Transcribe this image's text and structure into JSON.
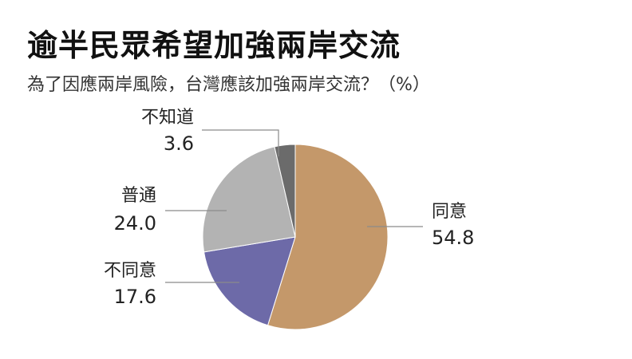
{
  "title": "逾半民眾希望加強兩岸交流",
  "subtitle": "為了因應兩岸風險，台灣應該加強兩岸交流？（%）",
  "chart_data": {
    "type": "pie",
    "slices": [
      {
        "label": "同意",
        "value": 54.8,
        "display": "54.8",
        "color": "#c4986a"
      },
      {
        "label": "不同意",
        "value": 17.6,
        "display": "17.6",
        "color": "#6d6aa8"
      },
      {
        "label": "普通",
        "value": 24.0,
        "display": "24.0",
        "color": "#b3b3b3"
      },
      {
        "label": "不知道",
        "value": 3.6,
        "display": "3.6",
        "color": "#6b6b6b"
      }
    ],
    "start": "12 o'clock",
    "direction": "clockwise",
    "legend": "none"
  }
}
